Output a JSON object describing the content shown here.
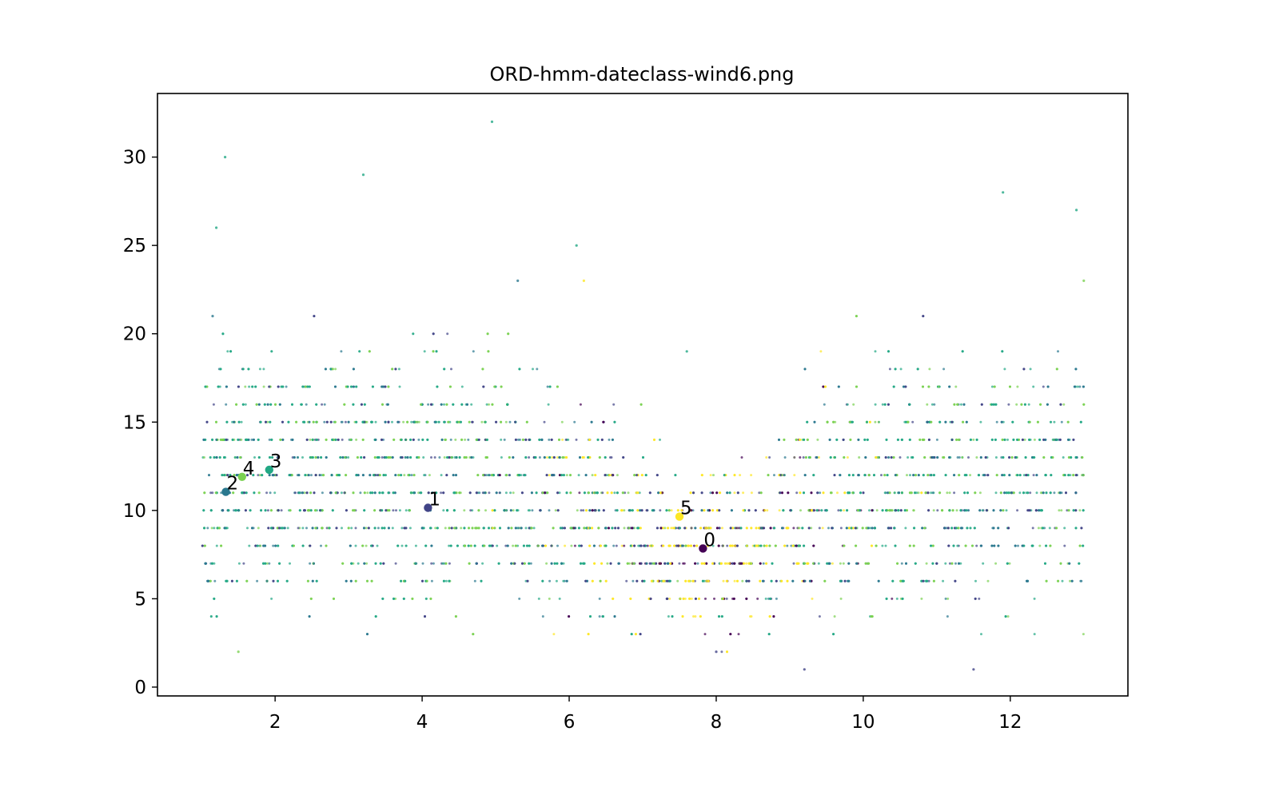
{
  "chart_data": {
    "type": "scatter",
    "title": "ORD-hmm-dateclass-wind6.png",
    "xlabel": "",
    "ylabel": "",
    "xlim": [
      0.4,
      13.6
    ],
    "ylim": [
      -0.5,
      33.6
    ],
    "x_ticks": [
      2,
      4,
      6,
      8,
      10,
      12
    ],
    "y_ticks": [
      0,
      5,
      10,
      15,
      20,
      25,
      30
    ],
    "grid": false,
    "legend": "none",
    "colormap": "viridis",
    "class_colors": {
      "0": "#440154",
      "1": "#414487",
      "2": "#2a788e",
      "3": "#22a884",
      "4": "#7ad151",
      "5": "#fde725"
    },
    "background_points": {
      "description_x_range": [
        1.0,
        13.0
      ],
      "description_y_integer_levels": [
        1,
        34
      ],
      "summary": "dense integer-level scatter of wind observations colored by HMM class; classes 0 and 5 dominate months 6-10, classes 2-4 dominate months 1-5 and 10-13",
      "sample": [
        {
          "x": 1.15,
          "y": 21,
          "c": 2
        },
        {
          "x": 1.2,
          "y": 26,
          "c": 3
        },
        {
          "x": 1.32,
          "y": 30,
          "c": 3
        },
        {
          "x": 1.5,
          "y": 2,
          "c": 4
        },
        {
          "x": 3.2,
          "y": 29,
          "c": 3
        },
        {
          "x": 4.95,
          "y": 32,
          "c": 3
        },
        {
          "x": 5.3,
          "y": 23,
          "c": 2
        },
        {
          "x": 6.1,
          "y": 25,
          "c": 3
        },
        {
          "x": 6.2,
          "y": 23,
          "c": 5
        },
        {
          "x": 7.6,
          "y": 19,
          "c": 3
        },
        {
          "x": 8.0,
          "y": 2,
          "c": 1
        },
        {
          "x": 9.2,
          "y": 1,
          "c": 1
        },
        {
          "x": 11.5,
          "y": 1,
          "c": 1
        },
        {
          "x": 11.9,
          "y": 28,
          "c": 3
        },
        {
          "x": 12.9,
          "y": 27,
          "c": 3
        },
        {
          "x": 13.0,
          "y": 23,
          "c": 4
        }
      ]
    },
    "centroids": [
      {
        "label": "0",
        "x": 7.82,
        "y": 7.85,
        "class": 0
      },
      {
        "label": "1",
        "x": 4.08,
        "y": 10.15,
        "class": 1
      },
      {
        "label": "2",
        "x": 1.33,
        "y": 11.05,
        "class": 2
      },
      {
        "label": "3",
        "x": 1.92,
        "y": 12.3,
        "class": 3
      },
      {
        "label": "4",
        "x": 1.55,
        "y": 11.9,
        "class": 4
      },
      {
        "label": "5",
        "x": 7.5,
        "y": 9.65,
        "class": 5
      }
    ]
  }
}
